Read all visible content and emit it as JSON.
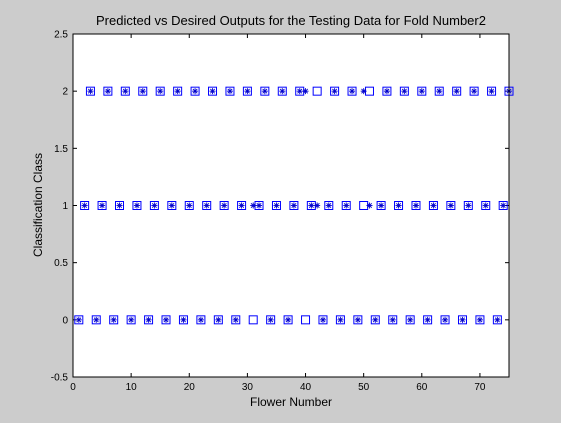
{
  "colors": {
    "figure_bg": "#cccccc",
    "axes_bg": "#ffffff",
    "desired_marker": "#0000ff",
    "predicted_marker": "#0000cc"
  },
  "chart_data": {
    "type": "scatter",
    "title": "Predicted vs Desired Outputs for the Testing Data for Fold Number2",
    "xlabel": "Flower Number",
    "ylabel": "Classification Class",
    "xlim": [
      0,
      75
    ],
    "ylim": [
      -0.5,
      2.5
    ],
    "xticks": [
      "0",
      "10",
      "20",
      "30",
      "40",
      "50",
      "60",
      "70"
    ],
    "yticks": [
      "-0.5",
      "0",
      "0.5",
      "1",
      "1.5",
      "2",
      "2.5"
    ],
    "grid": false,
    "series": [
      {
        "marker": "square",
        "x": [
          1,
          2,
          3,
          4,
          5,
          6,
          7,
          8,
          9,
          10,
          11,
          12,
          13,
          14,
          15,
          16,
          17,
          18,
          19,
          20,
          21,
          22,
          23,
          24,
          25,
          26,
          27,
          28,
          29,
          30,
          31,
          32,
          33,
          34,
          35,
          36,
          37,
          38,
          39,
          40,
          41,
          42,
          43,
          44,
          45,
          46,
          47,
          48,
          49,
          50,
          51,
          52,
          53,
          54,
          55,
          56,
          57,
          58,
          59,
          60,
          61,
          62,
          63,
          64,
          65,
          66,
          67,
          68,
          69,
          70,
          71,
          72,
          73,
          74,
          75
        ],
        "y": [
          0,
          1,
          2,
          0,
          1,
          2,
          0,
          1,
          2,
          0,
          1,
          2,
          0,
          1,
          2,
          0,
          1,
          2,
          0,
          1,
          2,
          0,
          1,
          2,
          0,
          1,
          2,
          0,
          1,
          2,
          0,
          1,
          2,
          0,
          1,
          2,
          0,
          1,
          2,
          0,
          1,
          2,
          0,
          1,
          2,
          0,
          1,
          2,
          0,
          1,
          2,
          0,
          1,
          2,
          0,
          1,
          2,
          0,
          1,
          2,
          0,
          1,
          2,
          0,
          1,
          2,
          0,
          1,
          2,
          0,
          1,
          2,
          0,
          1,
          2
        ]
      },
      {
        "marker": "star",
        "x": [
          1,
          2,
          3,
          4,
          5,
          6,
          7,
          8,
          9,
          10,
          11,
          12,
          13,
          14,
          15,
          16,
          17,
          18,
          19,
          20,
          21,
          22,
          23,
          24,
          25,
          26,
          27,
          28,
          29,
          30,
          31,
          32,
          33,
          34,
          35,
          36,
          37,
          38,
          39,
          40,
          41,
          42,
          43,
          44,
          45,
          46,
          47,
          48,
          49,
          50,
          51,
          52,
          53,
          54,
          55,
          56,
          57,
          58,
          59,
          60,
          61,
          62,
          63,
          64,
          65,
          66,
          67,
          68,
          69,
          70,
          71,
          72,
          73,
          74,
          75
        ],
        "y": [
          0,
          1,
          2,
          0,
          1,
          2,
          0,
          1,
          2,
          0,
          1,
          2,
          0,
          1,
          2,
          0,
          1,
          2,
          0,
          1,
          2,
          0,
          1,
          2,
          0,
          1,
          2,
          0,
          1,
          2,
          1,
          1,
          2,
          0,
          1,
          2,
          0,
          1,
          2,
          2,
          1,
          1,
          0,
          1,
          2,
          0,
          1,
          2,
          0,
          2,
          1,
          0,
          1,
          2,
          0,
          1,
          2,
          0,
          1,
          2,
          0,
          1,
          2,
          0,
          1,
          2,
          0,
          1,
          2,
          0,
          1,
          2,
          0,
          1,
          2
        ]
      }
    ]
  }
}
